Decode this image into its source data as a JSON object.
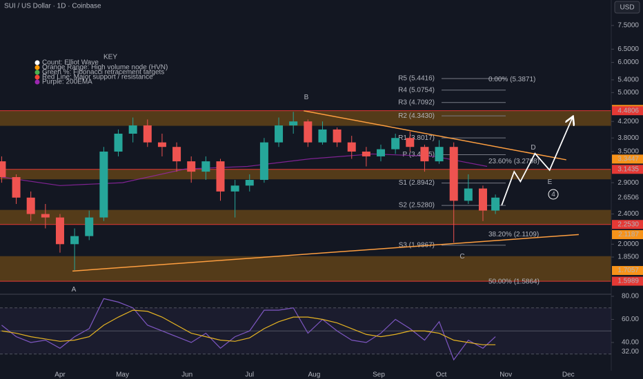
{
  "header": {
    "title": "SUI / US Dollar · 1D · Coinbase",
    "currency": "USD"
  },
  "key": {
    "title": "KEY",
    "items": [
      "Count: Elliot Wave",
      "Orange Range: High volume node (HVN)",
      "Green %: Fibonacci retracement targets",
      "Red Line: Major support / resistance",
      "Purple: 200EMA"
    ]
  },
  "chart_data": [
    {
      "type": "candlestick",
      "log": true,
      "xlim": [
        -28.8,
        264.6
      ],
      "ylim": [
        1.49,
        8.75
      ],
      "up_color": "#26a69a",
      "down_color": "#ef5350",
      "xticks": [
        {
          "value": 0,
          "label": "Apr"
        },
        {
          "value": 30,
          "label": "May"
        },
        {
          "value": 61,
          "label": "Jun"
        },
        {
          "value": 91,
          "label": "Jul"
        },
        {
          "value": 122,
          "label": "Aug"
        },
        {
          "value": 153,
          "label": "Sep"
        },
        {
          "value": 183,
          "label": "Oct"
        },
        {
          "value": 214,
          "label": "Nov"
        },
        {
          "value": 244,
          "label": "Dec"
        }
      ],
      "yticks": [
        {
          "value": 7.5,
          "label": "7.5000"
        },
        {
          "value": 6.5,
          "label": "6.5000"
        },
        {
          "value": 6.0,
          "label": "6.0000"
        },
        {
          "value": 5.4,
          "label": "5.4000"
        },
        {
          "value": 5.0,
          "label": "5.0000"
        },
        {
          "value": 4.2,
          "label": "4.2000"
        },
        {
          "value": 3.8,
          "label": "3.8000"
        },
        {
          "value": 3.5,
          "label": "3.5000"
        },
        {
          "value": 2.9,
          "label": "2.9000"
        },
        {
          "value": 2.4,
          "label": "2.4000"
        },
        {
          "value": 2.0,
          "label": "2.0000"
        },
        {
          "value": 1.85,
          "label": "1.8500"
        }
      ],
      "x": [
        -28,
        -21,
        -14,
        -7,
        0,
        7,
        14,
        21,
        28,
        35,
        42,
        49,
        56,
        63,
        70,
        77,
        84,
        91,
        98,
        105,
        112,
        119,
        126,
        133,
        140,
        147,
        154,
        161,
        168,
        175,
        182,
        189,
        196,
        203,
        209
      ],
      "open": [
        3.3,
        3.0,
        2.65,
        2.4,
        2.35,
        2.0,
        2.1,
        2.35,
        3.5,
        3.9,
        4.1,
        3.7,
        3.6,
        3.3,
        3.1,
        3.3,
        2.75,
        2.85,
        2.95,
        3.7,
        4.1,
        4.2,
        3.7,
        4.0,
        3.7,
        3.5,
        3.4,
        3.55,
        3.8,
        3.6,
        3.3,
        3.6,
        2.6,
        2.8,
        2.45
      ],
      "high": [
        3.4,
        3.05,
        2.75,
        2.55,
        2.4,
        2.2,
        2.45,
        3.6,
        4.0,
        4.3,
        4.25,
        3.9,
        3.7,
        3.4,
        3.4,
        3.35,
        2.95,
        3.05,
        3.8,
        4.3,
        4.45,
        4.25,
        4.2,
        4.05,
        3.85,
        3.6,
        3.65,
        3.9,
        3.95,
        3.65,
        3.75,
        3.7,
        3.05,
        2.85,
        2.7
      ],
      "low": [
        2.9,
        2.55,
        2.3,
        2.2,
        1.9,
        1.71,
        2.05,
        2.3,
        3.4,
        3.7,
        3.6,
        3.4,
        3.1,
        2.9,
        2.95,
        2.6,
        2.35,
        2.75,
        2.9,
        3.6,
        3.9,
        3.6,
        3.65,
        3.6,
        3.35,
        3.2,
        3.3,
        3.45,
        3.5,
        3.1,
        3.25,
        2.02,
        2.55,
        2.3,
        2.4
      ],
      "close": [
        3.0,
        2.65,
        2.4,
        2.35,
        2.0,
        2.1,
        2.35,
        3.5,
        3.9,
        4.1,
        3.7,
        3.6,
        3.3,
        3.1,
        3.3,
        2.75,
        2.85,
        2.95,
        3.7,
        4.1,
        4.2,
        3.7,
        4.0,
        3.7,
        3.5,
        3.4,
        3.55,
        3.8,
        3.6,
        3.3,
        3.6,
        2.6,
        2.8,
        2.45,
        2.65
      ],
      "ema": {
        "color": "#9c27b0",
        "x": [
          -28,
          0,
          30,
          60,
          90,
          120,
          150,
          180,
          205
        ],
        "values": [
          3.0,
          2.85,
          2.9,
          3.15,
          3.2,
          3.35,
          3.45,
          3.4,
          3.2
        ]
      },
      "zones": [
        [
          4.09,
          4.48
        ],
        [
          2.96,
          3.14
        ],
        [
          2.253,
          2.46
        ],
        [
          1.5989,
          1.86
        ]
      ],
      "zone_color": "#8a5a12",
      "price_labels": [
        {
          "value": 4.5158,
          "label": "4.5158",
          "color": "#f7931a"
        },
        {
          "value": 4.4806,
          "label": "4.4806",
          "color": "#e53935"
        },
        {
          "value": 3.3447,
          "label": "3.3447",
          "color": "#f7931a"
        },
        {
          "value": 3.1435,
          "label": "3.1435",
          "color": "#e53935"
        },
        {
          "value": 2.6506,
          "label": "2.6506",
          "color": "#131722"
        },
        {
          "value": 2.253,
          "label": "2.2530",
          "color": "#e53935"
        },
        {
          "value": 2.1187,
          "label": "2.1187",
          "color": "#f7931a"
        },
        {
          "value": 1.7057,
          "label": "1.7057",
          "color": "#f7931a"
        },
        {
          "value": 1.5989,
          "label": "1.5989",
          "color": "#e53935"
        }
      ],
      "trendlines": [
        {
          "x": [
            117,
            243
          ],
          "values": [
            4.48,
            3.33
          ]
        },
        {
          "x": [
            6,
            249
          ],
          "values": [
            1.7,
            2.12
          ]
        }
      ],
      "trend_color": "#ff9f40",
      "projection": {
        "x": [
          212,
          218,
          221,
          228,
          235,
          246
        ],
        "values": [
          2.53,
          3.1,
          2.92,
          3.46,
          3.13,
          4.3
        ]
      },
      "pivots": [
        {
          "label": "R5 (5.4416)",
          "value": 5.4416
        },
        {
          "label": "R4 (5.0754)",
          "value": 5.0754
        },
        {
          "label": "R3 (4.7092)",
          "value": 4.7092
        },
        {
          "label": "R2 (4.3430)",
          "value": 4.343
        },
        {
          "label": "R1 (3.8017)",
          "value": 3.8017
        },
        {
          "label": "P (3.4355)",
          "value": 3.4355
        },
        {
          "label": "S1 (2.8942)",
          "value": 2.8942
        },
        {
          "label": "S2 (2.5280)",
          "value": 2.528
        },
        {
          "label": "S3 (1.9867)",
          "value": 1.9867
        }
      ],
      "fibs": [
        {
          "label": "0.00% (5.3871)",
          "value": 5.3871
        },
        {
          "label": "23.60% (3.2798)",
          "value": 3.2798
        },
        {
          "label": "38.20% (2.1109)",
          "value": 2.1109
        },
        {
          "label": "50.00% (1.5864)",
          "value": 1.5864
        }
      ],
      "annotations": [
        "A",
        "B",
        "C",
        "D",
        "E",
        "4"
      ]
    },
    {
      "type": "line",
      "ylim": [
        15.5,
        81.2
      ],
      "yticks": [
        {
          "value": 80,
          "label": "80.00"
        },
        {
          "value": 60,
          "label": "60.00"
        },
        {
          "value": 40,
          "label": "40.00"
        }
      ],
      "levels": [
        70,
        50,
        30
      ],
      "current": {
        "value": 32,
        "label": "32.00"
      },
      "x": [
        -28,
        -21,
        -14,
        -7,
        0,
        7,
        14,
        21,
        28,
        35,
        42,
        49,
        56,
        63,
        70,
        77,
        84,
        91,
        98,
        105,
        112,
        119,
        126,
        133,
        140,
        147,
        154,
        161,
        168,
        175,
        182,
        189,
        196,
        203,
        209
      ],
      "series": [
        {
          "color": "#7e57c2",
          "values": [
            55,
            45,
            40,
            42,
            35,
            45,
            52,
            78,
            75,
            70,
            55,
            50,
            45,
            40,
            48,
            35,
            45,
            50,
            68,
            68,
            70,
            48,
            60,
            50,
            42,
            40,
            48,
            60,
            52,
            42,
            58,
            25,
            42,
            35,
            45
          ]
        },
        {
          "color": "#e6b422",
          "values": [
            50,
            48,
            45,
            43,
            41,
            42,
            45,
            55,
            62,
            68,
            67,
            62,
            55,
            48,
            45,
            42,
            41,
            44,
            52,
            58,
            62,
            62,
            60,
            57,
            52,
            47,
            45,
            47,
            50,
            50,
            48,
            42,
            40,
            38,
            38
          ]
        }
      ]
    }
  ]
}
